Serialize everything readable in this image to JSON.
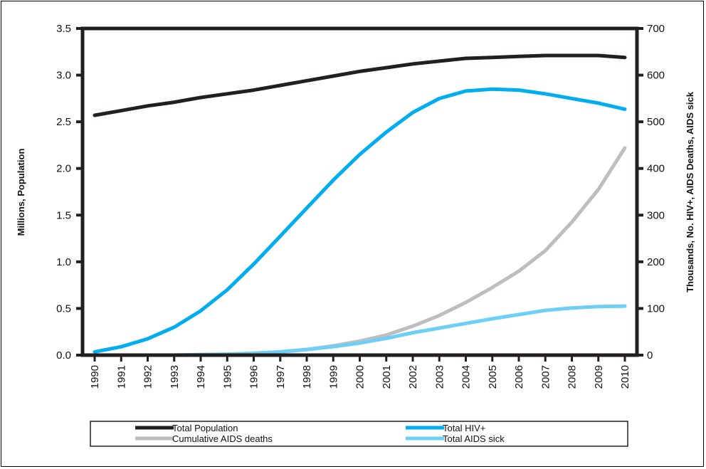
{
  "chart_data": {
    "type": "line",
    "title": "",
    "xlabel": "",
    "ylabel_left": "Millions, Population",
    "ylabel_right": "Thousands, No. HIV+, AIDS Deaths, AIDS sick",
    "ylim_left": [
      0,
      3.5
    ],
    "ylim_right": [
      0,
      700
    ],
    "yticks_left": [
      "0.0",
      "0.5",
      "1.0",
      "1.5",
      "2.0",
      "2.5",
      "3.0",
      "3.5"
    ],
    "yticks_right": [
      "0",
      "100",
      "200",
      "300",
      "400",
      "500",
      "600",
      "700"
    ],
    "categories": [
      "1990",
      "1991",
      "1992",
      "1993",
      "1994",
      "1995",
      "1996",
      "1997",
      "1998",
      "1999",
      "2000",
      "2001",
      "2002",
      "2003",
      "2004",
      "2005",
      "2006",
      "2007",
      "2008",
      "2009",
      "2010"
    ],
    "grid": false,
    "legend_position": "bottom",
    "series": [
      {
        "name": "Total Population",
        "axis": "left",
        "color": "#231f20",
        "values": [
          2.57,
          2.62,
          2.67,
          2.71,
          2.76,
          2.8,
          2.84,
          2.89,
          2.94,
          2.99,
          3.04,
          3.08,
          3.12,
          3.15,
          3.18,
          3.19,
          3.2,
          3.21,
          3.21,
          3.21,
          3.19
        ]
      },
      {
        "name": "Total HIV+",
        "axis": "right",
        "color": "#00aeef",
        "values": [
          7,
          18,
          35,
          60,
          95,
          140,
          195,
          255,
          315,
          375,
          430,
          478,
          520,
          550,
          566,
          570,
          568,
          560,
          550,
          540,
          527
        ]
      },
      {
        "name": "Cumulative AIDS deaths",
        "axis": "right",
        "color": "#bcbec0",
        "values": [
          0,
          0,
          0,
          0,
          1,
          2,
          4,
          7,
          12,
          20,
          30,
          43,
          62,
          85,
          113,
          145,
          180,
          224,
          285,
          355,
          444
        ]
      },
      {
        "name": "Total AIDS sick",
        "axis": "right",
        "color": "#6dcff6",
        "values": [
          0,
          0,
          0,
          0,
          1,
          2,
          4,
          7,
          12,
          18,
          26,
          36,
          48,
          58,
          68,
          78,
          87,
          96,
          101,
          104,
          105
        ]
      }
    ]
  }
}
